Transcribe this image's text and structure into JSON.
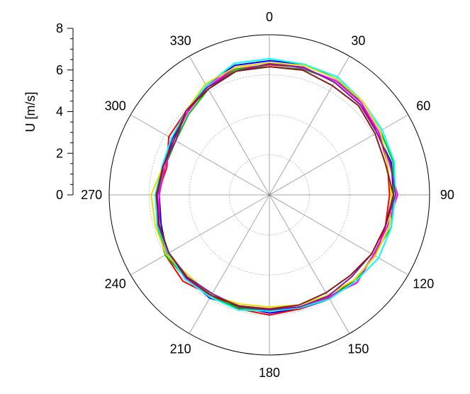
{
  "chart_data": {
    "type": "polar-line",
    "ylabel": "U [m/s]",
    "rlim": [
      0,
      8
    ],
    "r_ticks": [
      "0",
      "2",
      "4",
      "6",
      "8"
    ],
    "theta_ticks": [
      "0",
      "30",
      "60",
      "90",
      "120",
      "150",
      "180",
      "210",
      "240",
      "270",
      "300",
      "330"
    ],
    "angle_zero": "top",
    "direction": "clockwise",
    "grid": true,
    "theta": [
      0,
      15,
      30,
      45,
      60,
      75,
      90,
      105,
      120,
      135,
      150,
      165,
      180,
      195,
      210,
      225,
      240,
      255,
      270,
      285,
      300,
      315,
      330,
      345
    ],
    "series": [
      {
        "color": "#0000ff",
        "values": [
          6.7,
          6.75,
          6.7,
          6.5,
          6.2,
          6.3,
          6.2,
          6.0,
          6.1,
          6.0,
          6.0,
          5.9,
          5.9,
          5.8,
          5.95,
          5.85,
          5.9,
          5.6,
          5.5,
          5.5,
          5.6,
          5.8,
          6.3,
          6.7
        ]
      },
      {
        "color": "#ff0000",
        "values": [
          6.5,
          6.6,
          6.5,
          6.4,
          6.3,
          6.1,
          6.0,
          6.0,
          6.1,
          6.0,
          5.95,
          5.9,
          6.0,
          5.9,
          5.8,
          6.1,
          6.0,
          5.7,
          5.6,
          5.3,
          5.8,
          5.9,
          6.2,
          6.5
        ]
      },
      {
        "color": "#00c000",
        "values": [
          6.4,
          6.5,
          6.6,
          6.6,
          6.4,
          6.4,
          6.2,
          6.3,
          6.0,
          6.1,
          5.9,
          5.8,
          5.8,
          5.85,
          5.9,
          5.9,
          6.0,
          5.8,
          5.6,
          5.4,
          5.4,
          5.7,
          6.1,
          6.5
        ]
      },
      {
        "color": "#ff00ff",
        "values": [
          6.6,
          6.55,
          6.6,
          6.5,
          6.3,
          6.2,
          6.4,
          6.1,
          6.0,
          6.2,
          5.9,
          5.8,
          5.7,
          5.75,
          5.8,
          5.9,
          5.9,
          5.7,
          5.5,
          5.4,
          5.5,
          5.8,
          6.2,
          6.6
        ]
      },
      {
        "color": "#00ffff",
        "values": [
          6.8,
          6.75,
          6.8,
          6.6,
          6.5,
          6.45,
          6.3,
          6.3,
          6.3,
          6.1,
          6.0,
          5.85,
          5.8,
          5.95,
          5.9,
          5.95,
          5.85,
          5.8,
          5.7,
          5.55,
          5.65,
          5.9,
          6.3,
          6.8
        ]
      },
      {
        "color": "#e0e000",
        "values": [
          6.6,
          6.7,
          6.7,
          6.6,
          6.4,
          6.1,
          6.1,
          6.2,
          6.1,
          6.0,
          5.8,
          5.7,
          5.6,
          5.65,
          5.8,
          5.7,
          5.95,
          5.9,
          5.9,
          5.5,
          5.5,
          5.9,
          6.4,
          6.6
        ]
      },
      {
        "color": "#7a1fa2",
        "values": [
          6.55,
          6.6,
          6.5,
          6.4,
          6.2,
          6.25,
          6.3,
          6.0,
          5.9,
          5.8,
          5.85,
          5.8,
          5.75,
          5.8,
          5.7,
          5.8,
          5.8,
          5.75,
          5.6,
          5.5,
          5.4,
          5.9,
          6.2,
          6.4
        ]
      },
      {
        "color": "#8b1a1a",
        "values": [
          6.4,
          6.45,
          6.3,
          6.3,
          6.1,
          6.0,
          6.2,
          6.0,
          5.9,
          5.7,
          5.65,
          5.7,
          5.7,
          5.75,
          5.8,
          5.85,
          5.8,
          5.7,
          5.65,
          5.5,
          5.5,
          5.9,
          6.1,
          6.4
        ]
      }
    ]
  }
}
